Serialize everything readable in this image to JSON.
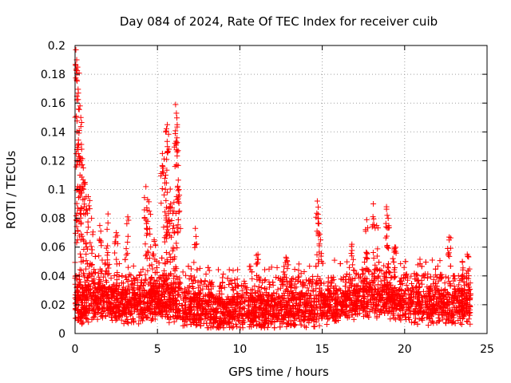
{
  "chart_data": {
    "type": "scatter",
    "title": "Day 084 of 2024, Rate Of TEC Index for receiver cuib",
    "xlabel": "GPS time / hours",
    "ylabel": "ROTI / TECUs",
    "xlim": [
      0,
      25
    ],
    "ylim": [
      0,
      0.2
    ],
    "x_ticks": [
      0,
      5,
      10,
      15,
      20,
      25
    ],
    "x_tick_labels": [
      "0",
      "5",
      "10",
      "15",
      "20",
      "25"
    ],
    "y_ticks": [
      0,
      0.02,
      0.04,
      0.06,
      0.08,
      0.1,
      0.12,
      0.14,
      0.16,
      0.18,
      0.2
    ],
    "y_tick_labels": [
      "0",
      "0.02",
      "0.04",
      "0.06",
      "0.08",
      "0.1",
      "0.12",
      "0.14",
      "0.16",
      "0.18",
      "0.2"
    ],
    "grid": true,
    "marker": "+",
    "marker_color": "#ff0000",
    "series": [
      {
        "name": "ROTI",
        "x_range_hours": [
          0,
          24
        ],
        "baseline_envelope": [
          [
            0,
            0.018
          ],
          [
            1,
            0.022
          ],
          [
            2,
            0.022
          ],
          [
            3,
            0.02
          ],
          [
            4,
            0.02
          ],
          [
            5,
            0.022
          ],
          [
            6,
            0.02
          ],
          [
            7,
            0.016
          ],
          [
            8,
            0.015
          ],
          [
            9,
            0.015
          ],
          [
            10,
            0.016
          ],
          [
            11,
            0.016
          ],
          [
            12,
            0.016
          ],
          [
            13,
            0.017
          ],
          [
            14,
            0.018
          ],
          [
            15,
            0.018
          ],
          [
            16,
            0.02
          ],
          [
            17,
            0.022
          ],
          [
            18,
            0.024
          ],
          [
            19,
            0.022
          ],
          [
            20,
            0.02
          ],
          [
            21,
            0.02
          ],
          [
            22,
            0.019
          ],
          [
            23,
            0.019
          ],
          [
            24,
            0.019
          ]
        ],
        "peaks": [
          [
            0.05,
            0.197
          ],
          [
            0.1,
            0.19
          ],
          [
            0.15,
            0.185
          ],
          [
            0.2,
            0.167
          ],
          [
            0.3,
            0.158
          ],
          [
            0.35,
            0.15
          ],
          [
            0.25,
            0.141
          ],
          [
            0.4,
            0.128
          ],
          [
            0.1,
            0.12
          ],
          [
            0.5,
            0.115
          ],
          [
            0.6,
            0.105
          ],
          [
            0.8,
            0.095
          ],
          [
            0.3,
            0.11
          ],
          [
            0.7,
            0.086
          ],
          [
            1.0,
            0.08
          ],
          [
            1.5,
            0.075
          ],
          [
            2.0,
            0.083
          ],
          [
            2.5,
            0.07
          ],
          [
            3.2,
            0.081
          ],
          [
            4.3,
            0.102
          ],
          [
            4.4,
            0.093
          ],
          [
            4.5,
            0.085
          ],
          [
            4.8,
            0.065
          ],
          [
            5.3,
            0.125
          ],
          [
            5.5,
            0.14
          ],
          [
            5.6,
            0.145
          ],
          [
            5.7,
            0.128
          ],
          [
            5.5,
            0.11
          ],
          [
            5.6,
            0.098
          ],
          [
            5.8,
            0.09
          ],
          [
            6.1,
            0.159
          ],
          [
            6.15,
            0.153
          ],
          [
            6.2,
            0.145
          ],
          [
            6.25,
            0.127
          ],
          [
            6.3,
            0.1
          ],
          [
            6.0,
            0.085
          ],
          [
            7.3,
            0.073
          ],
          [
            11.1,
            0.055
          ],
          [
            12.8,
            0.053
          ],
          [
            14.7,
            0.092
          ],
          [
            14.75,
            0.08
          ],
          [
            14.9,
            0.065
          ],
          [
            16.8,
            0.062
          ],
          [
            17.7,
            0.079
          ],
          [
            18.1,
            0.09
          ],
          [
            18.3,
            0.075
          ],
          [
            18.9,
            0.088
          ],
          [
            19.0,
            0.08
          ],
          [
            19.4,
            0.06
          ],
          [
            22.7,
            0.067
          ],
          [
            23.5,
            0.05
          ],
          [
            23.8,
            0.055
          ]
        ]
      }
    ]
  }
}
